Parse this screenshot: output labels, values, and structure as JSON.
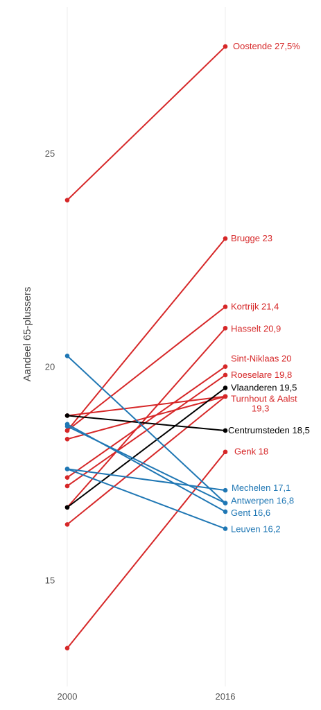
{
  "chart_data": {
    "type": "line",
    "title": "",
    "xlabel": "",
    "ylabel": "Aandeel 65-plussers",
    "x": [
      "2000",
      "2016"
    ],
    "y_ticks": [
      "15",
      "20",
      "25"
    ],
    "ylim": [
      13.3,
      28.2
    ],
    "grid": "vertical lines at 2000 and 2016",
    "colors": {
      "red": "#d62728",
      "blue": "#1f77b4",
      "black": "#000000"
    },
    "series": [
      {
        "values": [
          23.9,
          27.5
        ],
        "color": "#d62728",
        "label": "Oostende 27,5%"
      },
      {
        "values": [
          18.5,
          23.0
        ],
        "color": "#d62728",
        "label": "Brugge 23"
      },
      {
        "values": [
          18.5,
          21.4
        ],
        "color": "#d62728",
        "label": "Kortrijk 21,4"
      },
      {
        "values": [
          16.7,
          20.9
        ],
        "color": "#d62728",
        "label": "Hasselt 20,9"
      },
      {
        "values": [
          17.4,
          20.0
        ],
        "color": "#d62728",
        "label": "Sint-Niklaas 20"
      },
      {
        "values": [
          17.2,
          19.8
        ],
        "color": "#d62728",
        "label": "Roeselare 19,8"
      },
      {
        "values": [
          18.3,
          19.3
        ],
        "color": "#d62728",
        "label": "Turnhout & Aalst",
        "label2": "19,3"
      },
      {
        "values": [
          16.3,
          19.3
        ],
        "color": "#d62728"
      },
      {
        "values": [
          18.85,
          19.3
        ],
        "color": "#d62728"
      },
      {
        "values": [
          13.4,
          18.0
        ],
        "color": "#d62728",
        "label": "Genk 18"
      },
      {
        "values": [
          16.7,
          19.5
        ],
        "color": "#000000",
        "label": "Vlaanderen 19,5"
      },
      {
        "values": [
          18.85,
          18.5
        ],
        "color": "#000000",
        "label": "Centrumsteden 18,5"
      },
      {
        "values": [
          17.6,
          17.1
        ],
        "color": "#1f77b4",
        "label": "Mechelen 17,1"
      },
      {
        "values": [
          18.6,
          16.8
        ],
        "color": "#1f77b4",
        "label": "Antwerpen 16,8"
      },
      {
        "values": [
          18.65,
          16.6
        ],
        "color": "#1f77b4",
        "label": "Gent 16,6"
      },
      {
        "values": [
          17.6,
          16.2
        ],
        "color": "#1f77b4",
        "label": "Leuven 16,2"
      },
      {
        "values": [
          20.25,
          16.8
        ],
        "color": "#1f77b4"
      }
    ]
  }
}
